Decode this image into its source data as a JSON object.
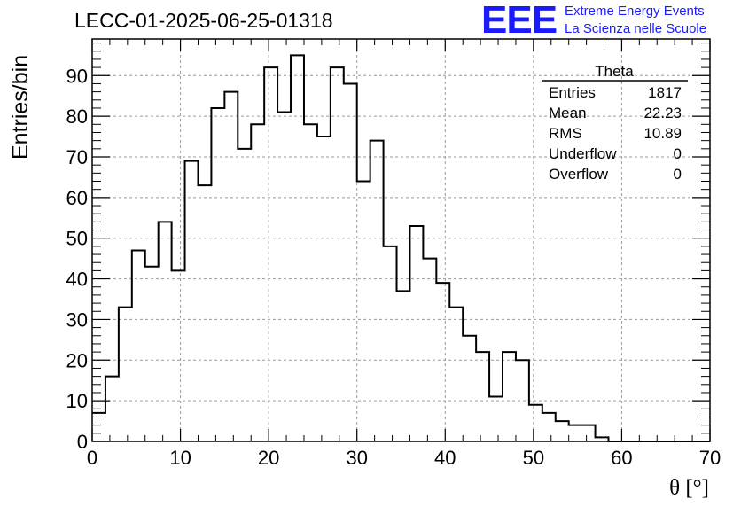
{
  "header": {
    "title": "LECC-01-2025-06-25-01318",
    "logo_mark": "EEE",
    "logo_line1": "Extreme Energy Events",
    "logo_line2": "La Scienza nelle Scuole",
    "logo_color": "#1a1aff"
  },
  "stats": {
    "title": "Theta",
    "rows": [
      {
        "label": "Entries",
        "value": "1817"
      },
      {
        "label": "Mean",
        "value": "22.23"
      },
      {
        "label": "RMS",
        "value": "10.89"
      },
      {
        "label": "Underflow",
        "value": "0"
      },
      {
        "label": "Overflow",
        "value": "0"
      }
    ]
  },
  "chart_data": {
    "type": "histogram",
    "xlabel": "θ [°]",
    "ylabel": "Entries/bin",
    "xlim": [
      0,
      70
    ],
    "ylim": [
      0,
      99
    ],
    "grid": true,
    "line_color": "#000000",
    "bin_width": 1.5,
    "x_start": 0,
    "values": [
      7,
      16,
      33,
      47,
      43,
      54,
      42,
      69,
      63,
      82,
      86,
      72,
      78,
      92,
      81,
      95,
      78,
      75,
      92,
      88,
      64,
      74,
      48,
      37,
      53,
      45,
      39,
      33,
      26,
      22,
      11,
      22,
      20,
      9,
      7,
      5,
      4,
      4,
      1,
      0,
      0,
      0,
      0,
      0,
      0,
      0,
      0
    ],
    "xticks": [
      "0",
      "10",
      "20",
      "30",
      "40",
      "50",
      "60",
      "70"
    ],
    "yticks": [
      "0",
      "10",
      "20",
      "30",
      "40",
      "50",
      "60",
      "70",
      "80",
      "90"
    ]
  }
}
